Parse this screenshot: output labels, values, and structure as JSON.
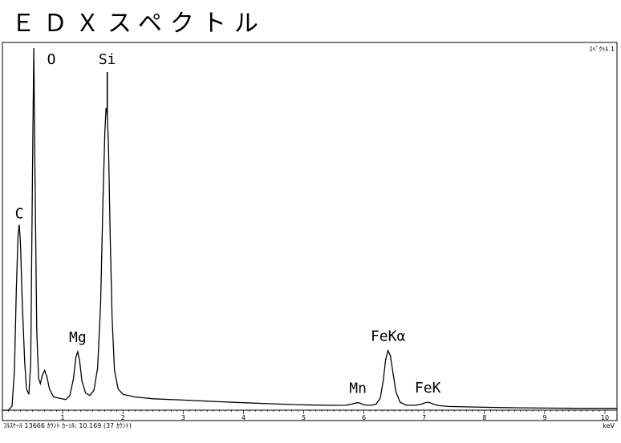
{
  "title": "ＥＤＸスペクトル",
  "chart_data": {
    "type": "line",
    "title": "ＥＤＸスペクトル",
    "spectrum_label": "ｽﾍﾟｸﾄﾙ 1",
    "xlabel": "keV",
    "xlim": [
      0,
      10.2
    ],
    "ylim": [
      0,
      13666
    ],
    "grid": false,
    "x_ticks": [
      "1",
      "2",
      "3",
      "4",
      "5",
      "6",
      "7",
      "8",
      "9",
      "10"
    ],
    "footer": "ﾌﾙｽｹｰﾙ 13666 ｶｳﾝﾄ ｶｰｿﾙ: 10.169  (37 ｶｳﾝﾄ)",
    "peaks": [
      {
        "label": "C",
        "x": 0.28,
        "y": 7000
      },
      {
        "label": "O",
        "x": 0.52,
        "y": 13666
      },
      {
        "label": "Si",
        "x": 1.74,
        "y": 11400
      },
      {
        "label": "Mg",
        "x": 1.25,
        "y": 2200
      },
      {
        "label": "Mn",
        "x": 5.9,
        "y": 280
      },
      {
        "label": "FeKα",
        "x": 6.4,
        "y": 2250
      },
      {
        "label": "FeK",
        "x": 7.06,
        "y": 300
      }
    ],
    "series": [
      {
        "x": [
          0.0,
          0.1,
          0.16,
          0.2,
          0.23,
          0.26,
          0.28,
          0.3,
          0.33,
          0.37,
          0.4,
          0.44,
          0.47,
          0.5,
          0.52,
          0.54,
          0.57,
          0.6,
          0.63,
          0.66,
          0.7,
          0.74,
          0.78,
          0.85,
          0.95,
          1.05,
          1.12,
          1.18,
          1.22,
          1.25,
          1.28,
          1.32,
          1.38,
          1.45,
          1.52,
          1.58,
          1.63,
          1.67,
          1.7,
          1.72,
          1.74,
          1.76,
          1.79,
          1.82,
          1.86,
          1.92,
          2.0,
          2.2,
          2.5,
          3.0,
          3.5,
          4.0,
          4.5,
          5.0,
          5.5,
          5.7,
          5.8,
          5.86,
          5.9,
          5.94,
          6.0,
          6.1,
          6.2,
          6.27,
          6.32,
          6.36,
          6.4,
          6.44,
          6.48,
          6.53,
          6.6,
          6.7,
          6.85,
          6.96,
          7.02,
          7.06,
          7.1,
          7.16,
          7.25,
          7.4,
          8.0,
          8.5,
          9.0,
          9.5,
          10.0,
          10.2
        ],
        "y": [
          0,
          0,
          150,
          1500,
          4500,
          6600,
          7000,
          6300,
          4000,
          1800,
          800,
          600,
          1800,
          9000,
          13666,
          9000,
          3000,
          1200,
          1000,
          1300,
          1500,
          1250,
          800,
          500,
          450,
          400,
          550,
          1200,
          2000,
          2200,
          1900,
          1100,
          650,
          550,
          750,
          1600,
          4000,
          8000,
          10500,
          11400,
          11200,
          10000,
          6500,
          3500,
          1500,
          800,
          600,
          500,
          430,
          380,
          330,
          280,
          240,
          200,
          180,
          185,
          230,
          270,
          280,
          260,
          200,
          180,
          220,
          450,
          1100,
          1900,
          2250,
          2050,
          1450,
          700,
          300,
          190,
          180,
          230,
          285,
          300,
          280,
          220,
          170,
          140,
          110,
          90,
          80,
          70,
          70,
          70
        ]
      }
    ]
  }
}
